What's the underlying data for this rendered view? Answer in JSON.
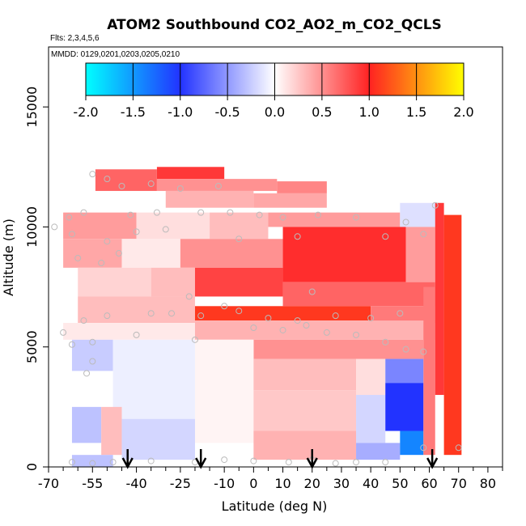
{
  "chart_data": {
    "type": "heatmap",
    "title": "ATOM2 Southbound CO2_AO2_m_CO2_QCLS",
    "subtitle_flights": "Flts: 2,3,4,5,6",
    "subtitle_dates": "MMDD: 0129,0201,0203,0205,0210",
    "xlabel": "Latitude (deg N)",
    "ylabel": "Altitude (m)",
    "xlim": [
      -70,
      85
    ],
    "ylim": [
      0,
      17500
    ],
    "x_ticks": [
      -70,
      -55,
      -40,
      -25,
      -10,
      0,
      10,
      20,
      30,
      40,
      50,
      60,
      70,
      80
    ],
    "x_minor_ticks": [
      -65,
      -60,
      -50,
      -45,
      -35,
      -30,
      -20,
      -15,
      -5,
      5,
      15,
      25,
      35,
      45,
      55,
      65,
      75,
      85
    ],
    "y_ticks": [
      0,
      5000,
      10000,
      15000
    ],
    "colorbar": {
      "ticks": [
        -2.0,
        -1.5,
        -1.0,
        -0.5,
        0.0,
        0.5,
        1.0,
        1.5,
        2.0
      ],
      "tick_labels": [
        "-2.0",
        "-1.5",
        "-1.0",
        "-0.5",
        "0.0",
        "0.5",
        "1.0",
        "1.5",
        "2.0"
      ],
      "colors": [
        "#00ffff",
        "#2233ff",
        "#ffffff",
        "#ff2222",
        "#ffff00"
      ]
    },
    "arrows_lat": [
      -43,
      -18,
      20,
      61
    ],
    "cells": [
      {
        "lat": [
          -33,
          -10
        ],
        "alt": [
          12000,
          12500
        ],
        "v": 0.9
      },
      {
        "lat": [
          -54,
          -33
        ],
        "alt": [
          11500,
          12400
        ],
        "v": 0.7
      },
      {
        "lat": [
          -33,
          8
        ],
        "alt": [
          11500,
          12000
        ],
        "v": 0.5
      },
      {
        "lat": [
          8,
          25
        ],
        "alt": [
          11400,
          11900
        ],
        "v": 0.55
      },
      {
        "lat": [
          -30,
          0
        ],
        "alt": [
          10800,
          11500
        ],
        "v": 0.35
      },
      {
        "lat": [
          0,
          25
        ],
        "alt": [
          10800,
          11400
        ],
        "v": 0.4
      },
      {
        "lat": [
          -65,
          -40
        ],
        "alt": [
          9500,
          10600
        ],
        "v": 0.45
      },
      {
        "lat": [
          -40,
          -15
        ],
        "alt": [
          9500,
          10600
        ],
        "v": 0.15
      },
      {
        "lat": [
          -15,
          5
        ],
        "alt": [
          9500,
          10600
        ],
        "v": 0.3
      },
      {
        "lat": [
          5,
          50
        ],
        "alt": [
          10000,
          10600
        ],
        "v": 0.45
      },
      {
        "lat": [
          50,
          62
        ],
        "alt": [
          10000,
          11000
        ],
        "v": -0.15
      },
      {
        "lat": [
          -65,
          -45
        ],
        "alt": [
          8300,
          9500
        ],
        "v": 0.4
      },
      {
        "lat": [
          -45,
          -25
        ],
        "alt": [
          8300,
          9500
        ],
        "v": 0.1
      },
      {
        "lat": [
          -25,
          10
        ],
        "alt": [
          8300,
          9500
        ],
        "v": 0.5
      },
      {
        "lat": [
          10,
          52
        ],
        "alt": [
          7700,
          10000
        ],
        "v": 0.95
      },
      {
        "lat": [
          52,
          62
        ],
        "alt": [
          7700,
          10000
        ],
        "v": 0.45
      },
      {
        "lat": [
          -60,
          -35
        ],
        "alt": [
          7100,
          8300
        ],
        "v": 0.2
      },
      {
        "lat": [
          -35,
          -20
        ],
        "alt": [
          7100,
          8300
        ],
        "v": 0.3
      },
      {
        "lat": [
          -20,
          10
        ],
        "alt": [
          7100,
          8300
        ],
        "v": 0.85
      },
      {
        "lat": [
          10,
          62
        ],
        "alt": [
          6700,
          7700
        ],
        "v": 0.7
      },
      {
        "lat": [
          -60,
          -20
        ],
        "alt": [
          6000,
          7100
        ],
        "v": 0.3
      },
      {
        "lat": [
          -20,
          40
        ],
        "alt": [
          6100,
          6700
        ],
        "v": 1.1
      },
      {
        "lat": [
          40,
          62
        ],
        "alt": [
          6000,
          6700
        ],
        "v": 0.6
      },
      {
        "lat": [
          -65,
          -20
        ],
        "alt": [
          5300,
          6000
        ],
        "v": 0.1
      },
      {
        "lat": [
          -20,
          62
        ],
        "alt": [
          5300,
          6100
        ],
        "v": 0.35
      },
      {
        "lat": [
          0,
          58
        ],
        "alt": [
          4500,
          5300
        ],
        "v": 0.5
      },
      {
        "lat": [
          -62,
          -48
        ],
        "alt": [
          4000,
          5300
        ],
        "v": -0.25
      },
      {
        "lat": [
          -48,
          -20
        ],
        "alt": [
          2000,
          5300
        ],
        "v": -0.08
      },
      {
        "lat": [
          -20,
          0
        ],
        "alt": [
          1000,
          5300
        ],
        "v": 0.05
      },
      {
        "lat": [
          0,
          35
        ],
        "alt": [
          3200,
          4500
        ],
        "v": 0.3
      },
      {
        "lat": [
          35,
          45
        ],
        "alt": [
          3000,
          4500
        ],
        "v": 0.15
      },
      {
        "lat": [
          45,
          58
        ],
        "alt": [
          3500,
          4500
        ],
        "v": -0.6
      },
      {
        "lat": [
          0,
          35
        ],
        "alt": [
          1500,
          3200
        ],
        "v": 0.25
      },
      {
        "lat": [
          35,
          45
        ],
        "alt": [
          1000,
          3000
        ],
        "v": -0.2
      },
      {
        "lat": [
          45,
          58
        ],
        "alt": [
          1500,
          3500
        ],
        "v": -1.0
      },
      {
        "lat": [
          -62,
          -52
        ],
        "alt": [
          1000,
          2500
        ],
        "v": -0.3
      },
      {
        "lat": [
          -52,
          -45
        ],
        "alt": [
          500,
          2500
        ],
        "v": 0.3
      },
      {
        "lat": [
          -45,
          -20
        ],
        "alt": [
          300,
          2000
        ],
        "v": -0.2
      },
      {
        "lat": [
          0,
          35
        ],
        "alt": [
          300,
          1500
        ],
        "v": 0.35
      },
      {
        "lat": [
          35,
          50
        ],
        "alt": [
          300,
          1000
        ],
        "v": -0.4
      },
      {
        "lat": [
          50,
          58
        ],
        "alt": [
          500,
          1500
        ],
        "v": -1.4
      },
      {
        "lat": [
          -62,
          -48
        ],
        "alt": [
          0,
          500
        ],
        "v": -0.3
      },
      {
        "lat": [
          58,
          62
        ],
        "alt": [
          500,
          7500
        ],
        "v": 0.6
      },
      {
        "lat": [
          62,
          65
        ],
        "alt": [
          3000,
          11000
        ],
        "v": 0.9
      },
      {
        "lat": [
          65,
          71
        ],
        "alt": [
          500,
          10500
        ],
        "v": 1.1
      }
    ],
    "points": [
      [
        -55,
        12200
      ],
      [
        -50,
        12000
      ],
      [
        -45,
        11700
      ],
      [
        -35,
        11800
      ],
      [
        -25,
        11600
      ],
      [
        -12,
        11700
      ],
      [
        -63,
        10400
      ],
      [
        -58,
        10600
      ],
      [
        -42,
        10500
      ],
      [
        -33,
        10600
      ],
      [
        -18,
        10600
      ],
      [
        -8,
        10600
      ],
      [
        2,
        10500
      ],
      [
        10,
        10400
      ],
      [
        22,
        10500
      ],
      [
        35,
        10400
      ],
      [
        52,
        10200
      ],
      [
        62,
        10900
      ],
      [
        -68,
        10000
      ],
      [
        -62,
        9700
      ],
      [
        -50,
        9400
      ],
      [
        -40,
        9800
      ],
      [
        -30,
        9900
      ],
      [
        -5,
        9500
      ],
      [
        15,
        9600
      ],
      [
        45,
        9600
      ],
      [
        58,
        9700
      ],
      [
        -60,
        8700
      ],
      [
        -52,
        8500
      ],
      [
        -46,
        8900
      ],
      [
        -22,
        7100
      ],
      [
        -10,
        6700
      ],
      [
        20,
        7300
      ],
      [
        -58,
        6100
      ],
      [
        -50,
        6300
      ],
      [
        -35,
        6400
      ],
      [
        -28,
        6400
      ],
      [
        -18,
        6300
      ],
      [
        -5,
        6500
      ],
      [
        5,
        6200
      ],
      [
        15,
        6100
      ],
      [
        28,
        6300
      ],
      [
        40,
        6200
      ],
      [
        50,
        6400
      ],
      [
        -65,
        5600
      ],
      [
        -62,
        5100
      ],
      [
        -55,
        5200
      ],
      [
        -40,
        5500
      ],
      [
        -20,
        5300
      ],
      [
        0,
        5800
      ],
      [
        10,
        5700
      ],
      [
        18,
        5900
      ],
      [
        25,
        5600
      ],
      [
        35,
        5500
      ],
      [
        45,
        5200
      ],
      [
        52,
        4900
      ],
      [
        58,
        4800
      ],
      [
        -55,
        4400
      ],
      [
        -57,
        3900
      ],
      [
        -62,
        200
      ],
      [
        -55,
        150
      ],
      [
        -48,
        200
      ],
      [
        -35,
        250
      ],
      [
        -20,
        200
      ],
      [
        -10,
        300
      ],
      [
        0,
        250
      ],
      [
        12,
        200
      ],
      [
        20,
        300
      ],
      [
        28,
        150
      ],
      [
        35,
        200
      ],
      [
        45,
        200
      ],
      [
        58,
        800
      ],
      [
        70,
        800
      ]
    ]
  }
}
